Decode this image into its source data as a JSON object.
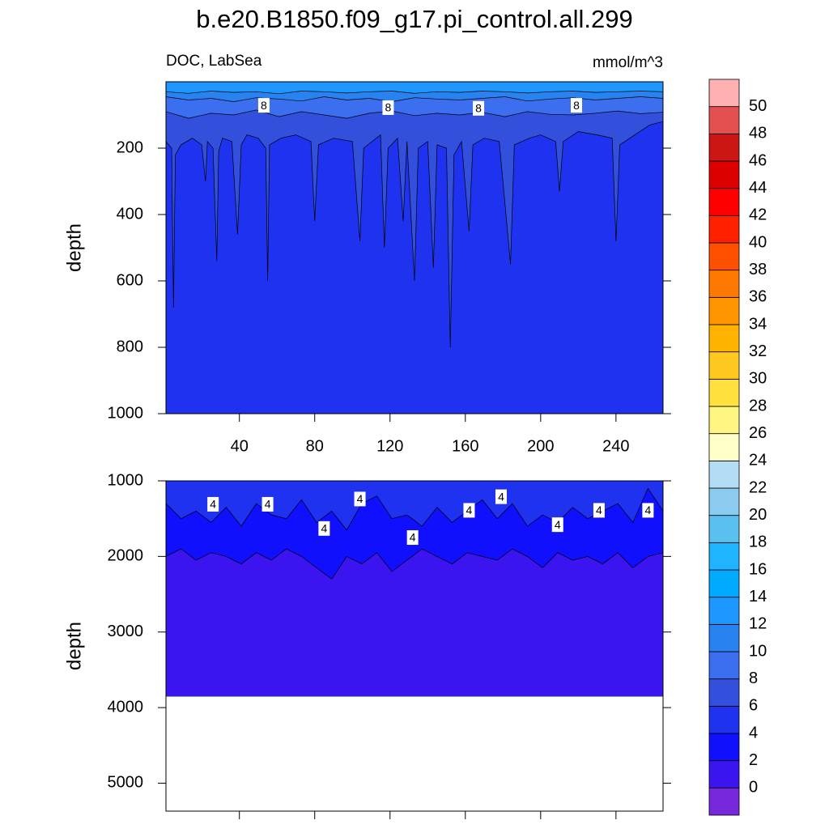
{
  "chart_data": {
    "type": "contour",
    "title": "b.e20.B1850.f09_g17.pi_control.all.299",
    "left_string": "DOC, LabSea",
    "right_string": "mmol/m^3",
    "colorbar": {
      "levels": [
        0,
        2,
        4,
        6,
        8,
        10,
        12,
        14,
        16,
        18,
        20,
        22,
        24,
        26,
        28,
        30,
        32,
        34,
        36,
        38,
        40,
        42,
        44,
        46,
        48,
        50
      ],
      "colors": [
        "#7828dc",
        "#3c14f0",
        "#1010ff",
        "#1e32f0",
        "#3250dc",
        "#3c6ef0",
        "#2882f0",
        "#1e96ff",
        "#00aaff",
        "#1eb4ff",
        "#5ac0f0",
        "#8ccbf0",
        "#b4dcf5",
        "#ffffc8",
        "#fff582",
        "#ffe03c",
        "#ffc81e",
        "#ffb300",
        "#ff9500",
        "#ff7800",
        "#ff5000",
        "#ff2000",
        "#ff0000",
        "#dd0000",
        "#cc1515",
        "#e45050",
        "#ffb0b0"
      ]
    },
    "panels": [
      {
        "ylabel": "depth",
        "xlim": [
          1,
          265
        ],
        "xticks": [
          40,
          80,
          120,
          160,
          200,
          240
        ],
        "xtick_labels": true,
        "ylim": [
          0,
          1000
        ],
        "yticks": [
          200,
          400,
          600,
          800,
          1000
        ],
        "background": "#1e32f0",
        "contours": [
          {
            "level": 6,
            "fill": "#3250dc",
            "side": "above",
            "x": [
              1,
              4,
              5,
              6,
              9,
              15,
              20,
              22,
              23,
              26,
              28,
              29,
              31,
              36,
              39,
              41,
              44,
              50,
              54,
              55,
              56,
              62,
              70,
              78,
              80,
              82,
              90,
              100,
              104,
              106,
              115,
              117,
              119,
              124,
              127,
              129,
              133,
              135,
              140,
              143,
              145,
              150,
              152,
              154,
              158,
              162,
              164,
              170,
              178,
              184,
              186,
              194,
              200,
              208,
              210,
              212,
              220,
              230,
              238,
              240,
              242,
              250,
              258,
              265
            ],
            "depth": [
              180,
              200,
              680,
              220,
              190,
              170,
              190,
              300,
              180,
              200,
              540,
              210,
              170,
              180,
              460,
              190,
              160,
              170,
              200,
              600,
              190,
              170,
              160,
              180,
              420,
              190,
              170,
              180,
              480,
              200,
              160,
              500,
              200,
              170,
              420,
              180,
              600,
              200,
              180,
              560,
              190,
              200,
              800,
              220,
              180,
              450,
              190,
              170,
              180,
              550,
              190,
              170,
              160,
              180,
              330,
              180,
              150,
              160,
              170,
              480,
              190,
              160,
              130,
              120
            ]
          },
          {
            "level": 8,
            "fill": "#3c6ef0",
            "side": "above",
            "x": [
              1,
              13,
              25,
              37,
              49,
              61,
              73,
              85,
              97,
              109,
              121,
              133,
              145,
              157,
              169,
              181,
              193,
              205,
              217,
              229,
              241,
              253,
              265
            ],
            "depth": [
              90,
              110,
              95,
              100,
              85,
              105,
              90,
              100,
              110,
              95,
              88,
              102,
              95,
              100,
              92,
              105,
              90,
              98,
              100,
              95,
              88,
              96,
              92
            ]
          },
          {
            "level": 10,
            "fill": "#2882f0",
            "side": "above",
            "x": [
              1,
              13,
              25,
              37,
              49,
              61,
              73,
              85,
              97,
              109,
              121,
              133,
              145,
              157,
              169,
              181,
              193,
              205,
              217,
              229,
              241,
              253,
              265
            ],
            "depth": [
              45,
              55,
              50,
              60,
              48,
              52,
              58,
              45,
              55,
              50,
              60,
              48,
              52,
              55,
              50,
              45,
              58,
              52,
              48,
              55,
              50,
              45,
              50
            ]
          },
          {
            "level": 12,
            "fill": "#1e96ff",
            "side": "above",
            "x": [
              1,
              13,
              25,
              37,
              49,
              61,
              73,
              85,
              97,
              109,
              121,
              133,
              145,
              157,
              169,
              181,
              193,
              205,
              217,
              229,
              241,
              253,
              265
            ],
            "depth": [
              30,
              35,
              28,
              32,
              30,
              36,
              28,
              30,
              34,
              30,
              28,
              35,
              30,
              32,
              28,
              30,
              34,
              30,
              28,
              32,
              30,
              28,
              30
            ]
          }
        ],
        "contour_labels": {
          "level": 8,
          "x": [
            53,
            119,
            167,
            219
          ],
          "depth": [
            71,
            78,
            80,
            71
          ]
        }
      },
      {
        "ylabel": "depth",
        "xlim": [
          1,
          265
        ],
        "xticks": [
          40,
          80,
          120,
          160,
          200,
          240
        ],
        "xtick_labels": false,
        "ylim": [
          1000,
          5370
        ],
        "yticks": [
          1000,
          2000,
          3000,
          4000,
          5000
        ],
        "background": "#1e32f0",
        "floor": 3850,
        "contours": [
          {
            "level": 4,
            "fill": "#1010ff",
            "side": "below",
            "x": [
              1,
              9,
              17,
              25,
              33,
              41,
              49,
              57,
              65,
              73,
              81,
              89,
              97,
              105,
              113,
              121,
              129,
              137,
              145,
              153,
              161,
              169,
              177,
              185,
              193,
              201,
              209,
              217,
              225,
              233,
              241,
              249,
              257,
              265
            ],
            "depth": [
              1300,
              1500,
              1400,
              1550,
              1350,
              1600,
              1300,
              1450,
              1500,
              1250,
              1550,
              1400,
              1650,
              1300,
              1200,
              1500,
              1450,
              1600,
              1350,
              1550,
              1400,
              1250,
              1500,
              1300,
              1600,
              1450,
              1550,
              1350,
              1500,
              1400,
              1300,
              1550,
              1100,
              1400
            ]
          },
          {
            "level": 2,
            "fill": "#3c14f0",
            "side": "below",
            "x": [
              1,
              9,
              17,
              25,
              33,
              41,
              49,
              57,
              65,
              73,
              81,
              89,
              97,
              105,
              113,
              121,
              129,
              137,
              145,
              153,
              161,
              169,
              177,
              185,
              193,
              201,
              209,
              217,
              225,
              233,
              241,
              249,
              257,
              265
            ],
            "depth": [
              2000,
              1900,
              2050,
              1950,
              2000,
              2100,
              1950,
              2050,
              1900,
              2000,
              2150,
              2300,
              2000,
              2100,
              1950,
              2200,
              2050,
              1900,
              2000,
              2100,
              1950,
              2000,
              2050,
              1900,
              2000,
              2150,
              1950,
              2050,
              2000,
              2100,
              1950,
              2150,
              2000,
              1950
            ]
          }
        ],
        "contour_labels": {
          "level": 4,
          "x": [
            26,
            55,
            85,
            104,
            132,
            162,
            179,
            209,
            231,
            257
          ],
          "depth": [
            1310,
            1310,
            1630,
            1240,
            1750,
            1390,
            1210,
            1580,
            1390,
            1390
          ]
        }
      }
    ]
  }
}
